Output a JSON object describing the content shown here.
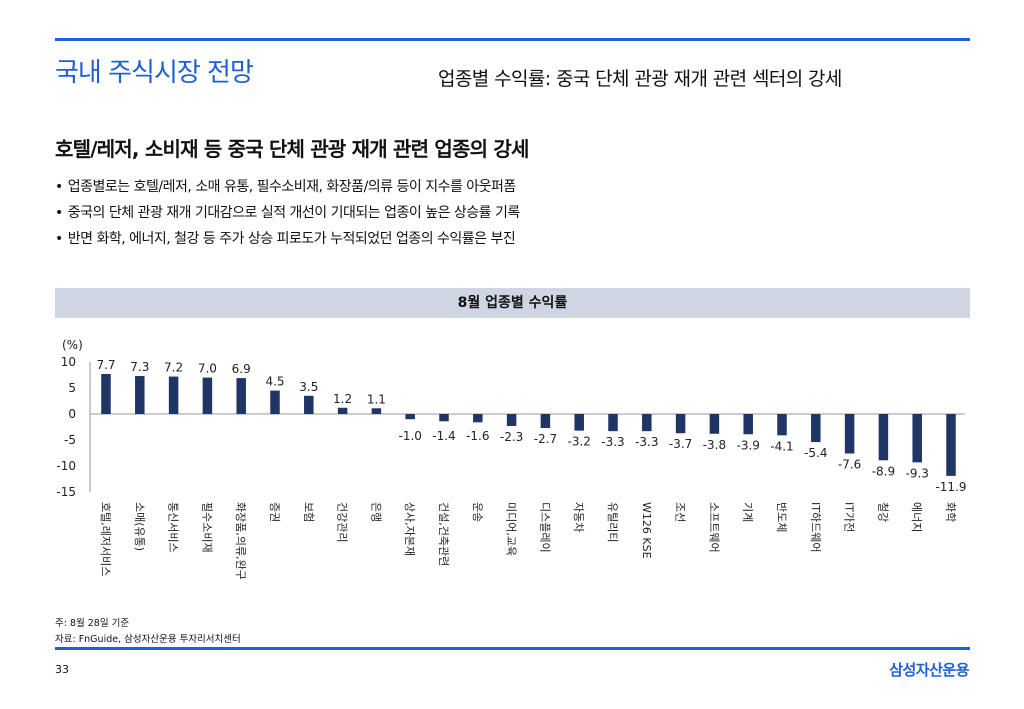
{
  "header": {
    "title": "국내 주식시장 전망",
    "subtitle": "업종별 수익률: 중국 단체 관광 재개 관련 섹터의 강세"
  },
  "section": {
    "heading": "호텔/레저, 소비재 등 중국 단체 관광 재개 관련 업종의 강세",
    "bullets": [
      "업종별로는 호텔/레저, 소매 유통, 필수소비재, 화장품/의류 등이 지수를 아웃퍼폼",
      "중국의 단체 관광 재개 기대감으로 실적 개선이 기대되는 업종이 높은 상승률 기록",
      "반면 화학, 에너지, 철강 등 주가 상승 피로도가 누적되었던 업종의 수익률은 부진"
    ]
  },
  "chart_title": "8월 업종별 수익률",
  "chart_data": {
    "type": "bar",
    "title": "8월 업종별 수익률",
    "unit_label": "(%)",
    "categories": [
      "호텔,레저서비스",
      "소매(유통)",
      "통신서비스",
      "필수소비재",
      "화장품,의류,완구",
      "증권",
      "보험",
      "건강관리",
      "은행",
      "상사,자본재",
      "건설,건축관련",
      "운송",
      "미디어,교육",
      "디스플레이",
      "자동차",
      "유틸리티",
      "W126 KSE",
      "조선",
      "소프트웨어",
      "기계",
      "반도체",
      "IT하드웨어",
      "IT가전",
      "철강",
      "에너지",
      "화학"
    ],
    "values": [
      7.7,
      7.3,
      7.2,
      7.0,
      6.9,
      4.5,
      3.5,
      1.2,
      1.1,
      -1.0,
      -1.4,
      -1.6,
      -2.3,
      -2.7,
      -3.2,
      -3.3,
      -3.3,
      -3.7,
      -3.8,
      -3.9,
      -4.1,
      -5.4,
      -7.6,
      -8.9,
      -9.3,
      -11.9
    ],
    "value_labels": [
      "7.7",
      "7.3",
      "7.2",
      "7.0",
      "6.9",
      "4.5",
      "3.5",
      "1.2",
      "1.1",
      "-1.0",
      "-1.4",
      "-1.6",
      "-2.3",
      "-2.7",
      "-3.2",
      "-3.3",
      "-3.3",
      "-3.7",
      "-3.8",
      "-3.9",
      "-4.1",
      "-5.4",
      "-7.6",
      "-8.9",
      "-9.3",
      "-11.9"
    ],
    "y_ticks": [
      10,
      5,
      0,
      -5,
      -10,
      -15
    ],
    "ylim": [
      -15,
      10
    ],
    "grid": false,
    "bar_color": "#1f3566"
  },
  "footnotes": {
    "note": "주: 8월 28일 기준",
    "source": "자료: FnGuide, 삼성자산운용 투자리서치센터"
  },
  "footer": {
    "page_number": "33",
    "brand": "삼성자산운용"
  },
  "colors": {
    "accent": "#1f5fd6",
    "bar": "#1f3566",
    "chart_band": "#cfd5e2"
  }
}
